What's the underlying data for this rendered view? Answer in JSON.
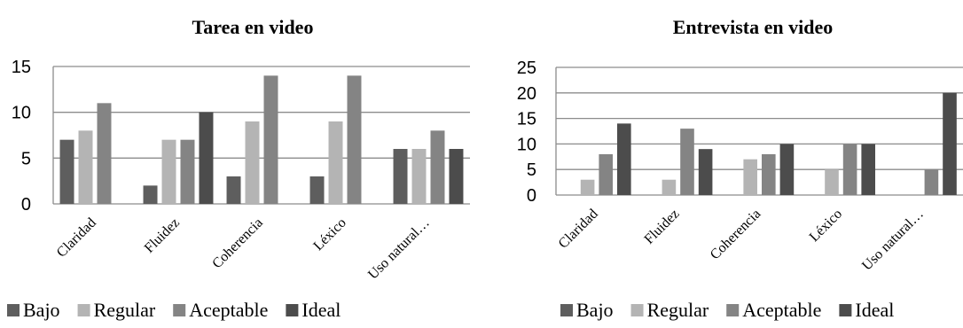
{
  "chart_data": [
    {
      "type": "bar",
      "title": "Tarea en video",
      "categories": [
        "Claridad",
        "Fluidez",
        "Coherencia",
        "Léxico",
        "Uso natural…"
      ],
      "series": [
        {
          "name": "Bajo",
          "color": "#5e5e5e",
          "values": [
            7,
            2,
            3,
            3,
            6
          ]
        },
        {
          "name": "Regular",
          "color": "#b4b4b4",
          "values": [
            8,
            7,
            9,
            9,
            6
          ]
        },
        {
          "name": "Aceptable",
          "color": "#848484",
          "values": [
            11,
            7,
            14,
            14,
            8
          ]
        },
        {
          "name": "Ideal",
          "color": "#4c4c4c",
          "values": [
            0,
            10,
            0,
            0,
            6
          ]
        }
      ],
      "ylim": [
        0,
        15
      ],
      "yticks": [
        0,
        5,
        10,
        15
      ],
      "grid": true,
      "legend": "bottom"
    },
    {
      "type": "bar",
      "title": "Entrevista en video",
      "categories": [
        "Claridad",
        "Fluidez",
        "Coherencia",
        "Léxico",
        "Uso natural…"
      ],
      "series": [
        {
          "name": "Bajo",
          "color": "#5e5e5e",
          "values": [
            0,
            0,
            0,
            0,
            0
          ]
        },
        {
          "name": "Regular",
          "color": "#b4b4b4",
          "values": [
            3,
            3,
            7,
            5,
            0
          ]
        },
        {
          "name": "Aceptable",
          "color": "#848484",
          "values": [
            8,
            13,
            8,
            10,
            5
          ]
        },
        {
          "name": "Ideal",
          "color": "#4c4c4c",
          "values": [
            14,
            9,
            10,
            10,
            20
          ]
        }
      ],
      "ylim": [
        0,
        25
      ],
      "yticks": [
        0,
        5,
        10,
        15,
        20,
        25
      ],
      "grid": true,
      "legend": "bottom"
    }
  ]
}
